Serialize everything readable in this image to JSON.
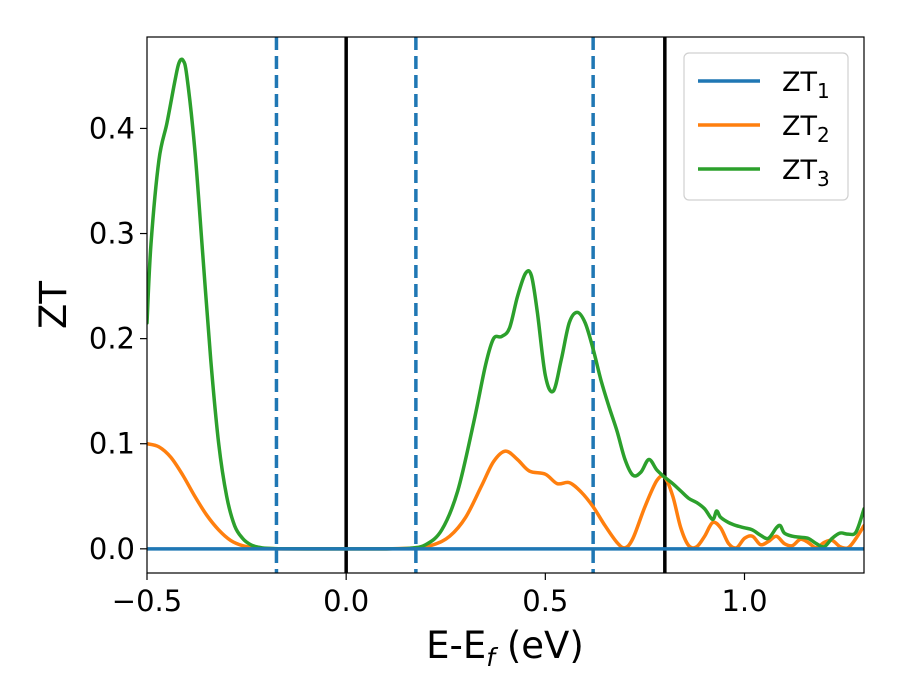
{
  "chart_data": {
    "type": "line",
    "xlabel": {
      "main": "E-E",
      "sub": "f",
      "rest": " (eV)"
    },
    "ylabel": "ZT",
    "xlim": [
      -0.5,
      1.3
    ],
    "ylim": [
      -0.023,
      0.487
    ],
    "xticks": [
      {
        "value": -0.5,
        "label": "−0.5"
      },
      {
        "value": 0.0,
        "label": "0.0"
      },
      {
        "value": 0.5,
        "label": "0.5"
      },
      {
        "value": 1.0,
        "label": "1.0"
      }
    ],
    "yticks": [
      {
        "value": 0.0,
        "label": "0.0"
      },
      {
        "value": 0.1,
        "label": "0.1"
      },
      {
        "value": 0.2,
        "label": "0.2"
      },
      {
        "value": 0.3,
        "label": "0.3"
      },
      {
        "value": 0.4,
        "label": "0.4"
      }
    ],
    "grid": false,
    "legend_position": "top-right",
    "vlines": [
      {
        "x": -0.175,
        "style": "dashed",
        "color": "#1f77b4"
      },
      {
        "x": 0.0,
        "style": "solid",
        "color": "#000000"
      },
      {
        "x": 0.175,
        "style": "dashed",
        "color": "#1f77b4"
      },
      {
        "x": 0.62,
        "style": "dashed",
        "color": "#1f77b4"
      },
      {
        "x": 0.8,
        "style": "solid",
        "color": "#000000"
      }
    ],
    "series": [
      {
        "name": "ZT",
        "sub": "1",
        "color": "#1f77b4",
        "x": [
          -0.5,
          1.3
        ],
        "y": [
          0.0,
          0.0
        ]
      },
      {
        "name": "ZT",
        "sub": "2",
        "color": "#ff7f0e",
        "x": [
          -0.5,
          -0.47,
          -0.44,
          -0.41,
          -0.38,
          -0.35,
          -0.32,
          -0.29,
          -0.26,
          -0.23,
          -0.2,
          -0.17,
          -0.1,
          0.0,
          0.1,
          0.18,
          0.22,
          0.26,
          0.3,
          0.34,
          0.37,
          0.4,
          0.43,
          0.46,
          0.5,
          0.53,
          0.56,
          0.59,
          0.62,
          0.65,
          0.68,
          0.7,
          0.72,
          0.75,
          0.78,
          0.8,
          0.82,
          0.84,
          0.86,
          0.88,
          0.9,
          0.92,
          0.94,
          0.96,
          0.98,
          1.0,
          1.02,
          1.04,
          1.06,
          1.08,
          1.1,
          1.12,
          1.14,
          1.16,
          1.18,
          1.2,
          1.22,
          1.24,
          1.26,
          1.28,
          1.3
        ],
        "y": [
          0.1,
          0.097,
          0.087,
          0.07,
          0.05,
          0.032,
          0.018,
          0.008,
          0.003,
          0.001,
          0.0003,
          0.0,
          0.0,
          0.0,
          0.0,
          0.001,
          0.004,
          0.012,
          0.03,
          0.06,
          0.083,
          0.093,
          0.085,
          0.074,
          0.071,
          0.062,
          0.063,
          0.054,
          0.04,
          0.022,
          0.006,
          0.001,
          0.01,
          0.04,
          0.065,
          0.068,
          0.05,
          0.02,
          0.003,
          0.002,
          0.012,
          0.025,
          0.02,
          0.005,
          0.001,
          0.01,
          0.012,
          0.004,
          0.007,
          0.012,
          0.005,
          0.003,
          0.009,
          0.006,
          0.001,
          0.006,
          0.008,
          0.002,
          0.001,
          0.01,
          0.022
        ]
      },
      {
        "name": "ZT",
        "sub": "3",
        "color": "#2ca02c",
        "x": [
          -0.5,
          -0.49,
          -0.47,
          -0.45,
          -0.43,
          -0.42,
          -0.41,
          -0.4,
          -0.38,
          -0.36,
          -0.34,
          -0.32,
          -0.3,
          -0.28,
          -0.26,
          -0.24,
          -0.22,
          -0.2,
          -0.17,
          -0.1,
          0.0,
          0.1,
          0.16,
          0.2,
          0.24,
          0.28,
          0.32,
          0.35,
          0.37,
          0.39,
          0.41,
          0.43,
          0.45,
          0.465,
          0.48,
          0.5,
          0.52,
          0.54,
          0.56,
          0.58,
          0.6,
          0.62,
          0.64,
          0.66,
          0.68,
          0.7,
          0.72,
          0.74,
          0.76,
          0.78,
          0.8,
          0.82,
          0.84,
          0.86,
          0.88,
          0.9,
          0.92,
          0.93,
          0.94,
          0.96,
          0.98,
          1.0,
          1.02,
          1.04,
          1.06,
          1.08,
          1.09,
          1.1,
          1.12,
          1.14,
          1.16,
          1.18,
          1.2,
          1.22,
          1.24,
          1.26,
          1.28,
          1.3
        ],
        "y": [
          0.215,
          0.29,
          0.37,
          0.405,
          0.445,
          0.462,
          0.465,
          0.45,
          0.38,
          0.28,
          0.18,
          0.1,
          0.05,
          0.022,
          0.01,
          0.004,
          0.0015,
          0.0005,
          0.0001,
          0.0,
          0.0,
          0.0,
          0.0005,
          0.004,
          0.018,
          0.055,
          0.12,
          0.175,
          0.2,
          0.202,
          0.21,
          0.24,
          0.262,
          0.26,
          0.225,
          0.165,
          0.15,
          0.18,
          0.215,
          0.225,
          0.215,
          0.19,
          0.16,
          0.135,
          0.112,
          0.085,
          0.07,
          0.073,
          0.085,
          0.075,
          0.068,
          0.062,
          0.055,
          0.048,
          0.044,
          0.038,
          0.028,
          0.036,
          0.03,
          0.025,
          0.022,
          0.02,
          0.018,
          0.013,
          0.01,
          0.02,
          0.022,
          0.015,
          0.012,
          0.011,
          0.01,
          0.005,
          0.002,
          0.01,
          0.015,
          0.014,
          0.016,
          0.038
        ]
      }
    ]
  }
}
